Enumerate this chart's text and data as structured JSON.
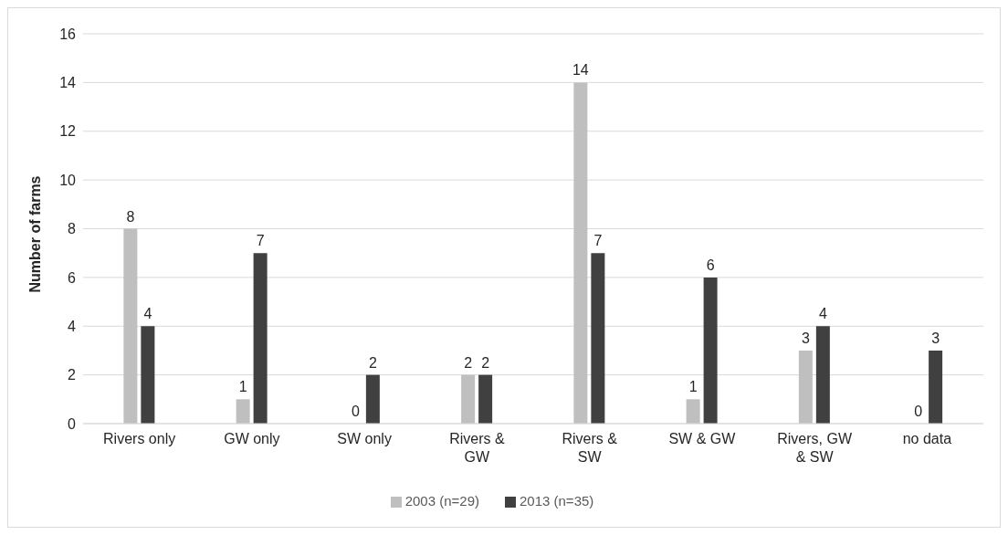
{
  "chart_data": {
    "type": "bar",
    "ylabel": "Number of farms",
    "categories": [
      "Rivers only",
      "GW only",
      "SW only",
      "Rivers & GW",
      "Rivers & SW",
      "SW & GW",
      "Rivers, GW & SW",
      "no data"
    ],
    "series": [
      {
        "name": "2003 (n=29)",
        "color": "#bfbfbf",
        "values": [
          8,
          1,
          0,
          2,
          14,
          1,
          3,
          0
        ]
      },
      {
        "name": "2013 (n=35)",
        "color": "#404040",
        "values": [
          4,
          7,
          2,
          2,
          7,
          6,
          4,
          3
        ]
      }
    ],
    "ylim": [
      0,
      16
    ],
    "yticks": [
      0,
      2,
      4,
      6,
      8,
      10,
      12,
      14,
      16
    ],
    "grid": "y",
    "legend": "bottom",
    "data_labels": true
  }
}
